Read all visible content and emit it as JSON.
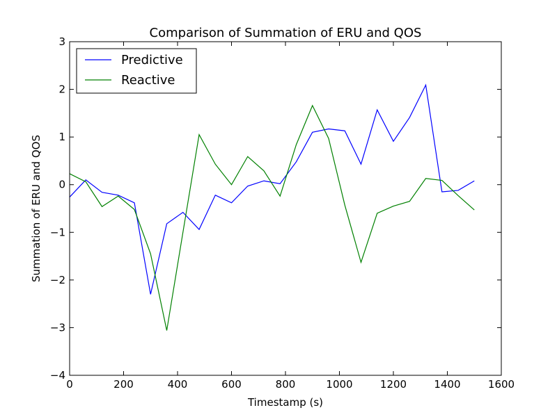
{
  "chart_data": {
    "type": "line",
    "title": "Comparison of Summation of ERU and QOS",
    "xlabel": "Timestamp (s)",
    "ylabel": "Summation of ERU and QOS",
    "xlim": [
      0,
      1600
    ],
    "ylim": [
      -4,
      3
    ],
    "xticks": [
      0,
      200,
      400,
      600,
      800,
      1000,
      1200,
      1400,
      1600
    ],
    "xtick_labels": [
      "0",
      "200",
      "400",
      "600",
      "800",
      "1000",
      "1200",
      "1400",
      "1600"
    ],
    "yticks": [
      -4,
      -3,
      -2,
      -1,
      0,
      1,
      2,
      3
    ],
    "ytick_labels": [
      "−4",
      "−3",
      "−2",
      "−1",
      "0",
      "1",
      "2",
      "3"
    ],
    "grid": false,
    "legend_position": "top-left",
    "x": [
      0,
      60,
      120,
      180,
      240,
      300,
      360,
      420,
      480,
      540,
      600,
      660,
      720,
      780,
      840,
      900,
      960,
      1020,
      1080,
      1140,
      1200,
      1260,
      1320,
      1380,
      1440,
      1500
    ],
    "series": [
      {
        "name": "Predictive",
        "color": "#0000ff",
        "values": [
          -0.26,
          0.1,
          -0.16,
          -0.22,
          -0.38,
          -2.3,
          -0.82,
          -0.58,
          -0.94,
          -0.22,
          -0.38,
          -0.03,
          0.08,
          0.02,
          0.48,
          1.1,
          1.17,
          1.13,
          0.43,
          1.57,
          0.91,
          1.41,
          2.09,
          -0.15,
          -0.12,
          0.08
        ]
      },
      {
        "name": "Reactive",
        "color": "#008000",
        "values": [
          0.23,
          0.06,
          -0.46,
          -0.24,
          -0.52,
          -1.45,
          -3.06,
          -1.0,
          1.05,
          0.43,
          0.0,
          0.59,
          0.29,
          -0.24,
          0.84,
          1.66,
          0.97,
          -0.43,
          -1.63,
          -0.6,
          -0.45,
          -0.35,
          0.13,
          0.09,
          -0.23,
          -0.53
        ]
      }
    ]
  }
}
